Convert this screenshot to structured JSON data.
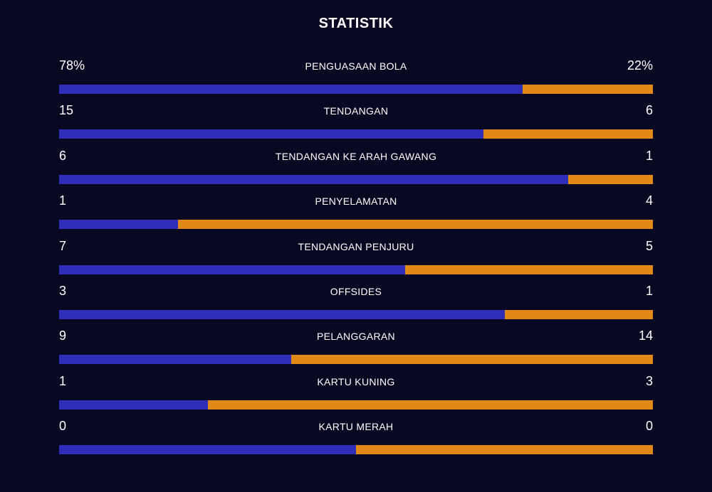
{
  "title": "STATISTIK",
  "colors": {
    "background": "#080822",
    "home": "#2e2eb8",
    "away": "#e08918"
  },
  "stats": [
    {
      "label": "PENGUASAAN BOLA",
      "home": "78%",
      "away": "22%",
      "home_share": 0.78
    },
    {
      "label": "TENDANGAN",
      "home": "15",
      "away": "6",
      "home_share": 0.7143
    },
    {
      "label": "TENDANGAN KE ARAH GAWANG",
      "home": "6",
      "away": "1",
      "home_share": 0.8571
    },
    {
      "label": "PENYELAMATAN",
      "home": "1",
      "away": "4",
      "home_share": 0.2
    },
    {
      "label": "TENDANGAN PENJURU",
      "home": "7",
      "away": "5",
      "home_share": 0.5833
    },
    {
      "label": "OFFSIDES",
      "home": "3",
      "away": "1",
      "home_share": 0.75
    },
    {
      "label": "PELANGGARAN",
      "home": "9",
      "away": "14",
      "home_share": 0.3913
    },
    {
      "label": "KARTU KUNING",
      "home": "1",
      "away": "3",
      "home_share": 0.25
    },
    {
      "label": "KARTU MERAH",
      "home": "0",
      "away": "0",
      "home_share": 0.5
    }
  ]
}
